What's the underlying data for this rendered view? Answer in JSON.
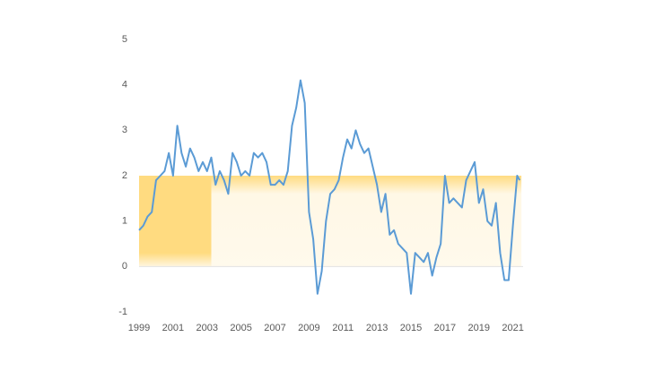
{
  "chart_data": {
    "type": "line",
    "x": [
      1999,
      1999.25,
      1999.5,
      1999.75,
      2000,
      2000.25,
      2000.5,
      2000.75,
      2001,
      2001.25,
      2001.5,
      2001.75,
      2002,
      2002.25,
      2002.5,
      2002.75,
      2003,
      2003.25,
      2003.5,
      2003.75,
      2004,
      2004.25,
      2004.5,
      2004.75,
      2005,
      2005.25,
      2005.5,
      2005.75,
      2006,
      2006.25,
      2006.5,
      2006.75,
      2007,
      2007.25,
      2007.5,
      2007.75,
      2008,
      2008.25,
      2008.5,
      2008.75,
      2009,
      2009.25,
      2009.5,
      2009.75,
      2010,
      2010.25,
      2010.5,
      2010.75,
      2011,
      2011.25,
      2011.5,
      2011.75,
      2012,
      2012.25,
      2012.5,
      2012.75,
      2013,
      2013.25,
      2013.5,
      2013.75,
      2014,
      2014.25,
      2014.5,
      2014.75,
      2015,
      2015.25,
      2015.5,
      2015.75,
      2016,
      2016.25,
      2016.5,
      2016.75,
      2017,
      2017.25,
      2017.5,
      2017.75,
      2018,
      2018.25,
      2018.5,
      2018.75,
      2019,
      2019.25,
      2019.5,
      2019.75,
      2020,
      2020.25,
      2020.5,
      2020.75,
      2021,
      2021.25,
      2021.4
    ],
    "series": [
      {
        "color": "#5b9bd5",
        "values": [
          0.8,
          0.9,
          1.1,
          1.2,
          1.9,
          2.0,
          2.1,
          2.5,
          2.0,
          3.1,
          2.5,
          2.2,
          2.6,
          2.4,
          2.1,
          2.3,
          2.1,
          2.4,
          1.8,
          2.1,
          1.9,
          1.6,
          2.5,
          2.3,
          2.0,
          2.1,
          2.0,
          2.5,
          2.4,
          2.5,
          2.3,
          1.8,
          1.8,
          1.9,
          1.8,
          2.1,
          3.1,
          3.5,
          4.1,
          3.6,
          1.2,
          0.6,
          -0.6,
          -0.1,
          1.0,
          1.6,
          1.7,
          1.9,
          2.4,
          2.8,
          2.6,
          3.0,
          2.7,
          2.5,
          2.6,
          2.2,
          1.8,
          1.2,
          1.6,
          0.7,
          0.8,
          0.5,
          0.4,
          0.3,
          -0.6,
          0.3,
          0.2,
          0.1,
          0.3,
          -0.2,
          0.2,
          0.5,
          2.0,
          1.4,
          1.5,
          1.4,
          1.3,
          1.9,
          2.1,
          2.3,
          1.4,
          1.7,
          1.0,
          0.9,
          1.4,
          0.3,
          -0.3,
          -0.3,
          0.9,
          2.0,
          1.9
        ]
      }
    ],
    "bands": [
      {
        "x": [
          1999,
          2003.25
        ],
        "y": [
          0,
          2
        ],
        "color": "#ffdb80",
        "fade": "bottom"
      },
      {
        "x": [
          2003.25,
          2021.5
        ],
        "y": [
          0,
          2
        ],
        "color": "#ffdb80",
        "fade": "top"
      }
    ],
    "xlim": [
      1999,
      2021.6
    ],
    "xticks": [
      1999,
      2001,
      2003,
      2005,
      2007,
      2009,
      2011,
      2013,
      2015,
      2017,
      2019,
      2021
    ],
    "ylim": [
      -1,
      5
    ],
    "yticks": [
      5,
      4,
      3,
      2,
      1,
      0,
      -1
    ]
  }
}
